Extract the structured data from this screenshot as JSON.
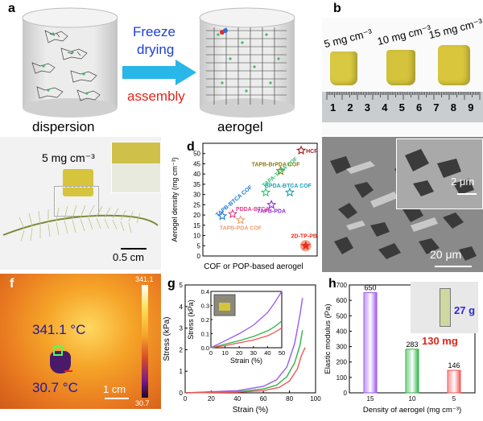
{
  "panels": {
    "a": {
      "label": "a",
      "left_caption": "dispersion",
      "right_caption": "aerogel",
      "arrow_top": "Freeze",
      "arrow_mid": "drying",
      "arrow_bottom": "assembly"
    },
    "b": {
      "label": "b",
      "densities": [
        "5 mg cm⁻³",
        "10 mg cm⁻³",
        "15 mg cm⁻³"
      ],
      "ruler_numbers": [
        "1",
        "2",
        "3",
        "4",
        "5",
        "6",
        "7",
        "8",
        "9"
      ]
    },
    "c": {
      "label": "c",
      "density": "5 mg cm⁻³",
      "scale": "0.5 cm"
    },
    "d": {
      "label": "d",
      "ylabel": "Aerogel density (mg cm⁻³)",
      "xlabel": "COF or POP-based aerogel"
    },
    "e": {
      "label": "e",
      "scale_inset": "2 μm",
      "scale_main": "20 μm"
    },
    "f": {
      "label": "f",
      "colorbar_max": "341.1",
      "colorbar_min": "30.7",
      "temp_high": "341.1 °C",
      "temp_low": "30.7 °C",
      "scale": "1 cm"
    },
    "g": {
      "label": "g",
      "inset_ylabel": "Stress (kPa)",
      "inset_xlabel": "Strain (%)"
    },
    "h": {
      "label": "h",
      "weight_top": "27 g",
      "weight_bottom": "130 mg"
    }
  },
  "colors": {
    "arrow": "#29b6e8",
    "freeze_text": "#1c3fd6",
    "assembly_text": "#e0261b",
    "aerogel_yellow": "#d6c43c",
    "ruler": "#c9cdd0",
    "thermal_bg": "#f08c1e",
    "hcp": "#9b1b1b",
    "bar15": "#9b59f0",
    "bar10": "#2fb44a",
    "bar5": "#f25555"
  },
  "chart_data": [
    {
      "type": "scatter",
      "title": "",
      "xlabel": "COF or POP-based aerogel",
      "ylabel": "Aerogel density (mg cm⁻³)",
      "ylim": [
        0,
        55
      ],
      "yticks": [
        0,
        5,
        10,
        15,
        20,
        25,
        30,
        35,
        40,
        45,
        50
      ],
      "points": [
        {
          "name": "HCP",
          "x": 8.6,
          "y": 51.5,
          "color": "#9b1b1b"
        },
        {
          "name": "TAPB-BrPDA COF",
          "x": 6.8,
          "y": 41.5,
          "color": "#8a7a12"
        },
        {
          "name": "BPDA-BTCA COF",
          "x": 7.6,
          "y": 31.0,
          "color": "#1f9fb5"
        },
        {
          "name": "TAPA-TFPA COF",
          "x": 5.5,
          "y": 31.0,
          "color": "#31c27a"
        },
        {
          "name": "TAPB-PDA",
          "x": 6.0,
          "y": 25.0,
          "color": "#8f2bd6"
        },
        {
          "name": "PDDA-BTCA",
          "x": 2.6,
          "y": 20.5,
          "color": "#e23a8b"
        },
        {
          "name": "TAPB-BTCA COF",
          "x": 1.7,
          "y": 19.5,
          "color": "#1e78d6"
        },
        {
          "name": "TAPB-PDA COF",
          "x": 3.3,
          "y": 17.5,
          "color": "#f0a070"
        },
        {
          "name": "2D-TP-PB",
          "x": 9.0,
          "y": 5.0,
          "color": "#e8301d"
        }
      ]
    },
    {
      "type": "line",
      "title": "",
      "xlabel": "Strain (%)",
      "ylabel": "Stress (kPa)",
      "xlim": [
        0,
        100
      ],
      "ylim": [
        0,
        5
      ],
      "xticks": [
        0,
        20,
        40,
        60,
        80,
        100
      ],
      "yticks": [
        0,
        1,
        2,
        3,
        4,
        5
      ],
      "series": [
        {
          "color": "#9b59f0",
          "x": [
            0,
            40,
            60,
            70,
            78,
            84,
            88,
            90
          ],
          "y": [
            0,
            0.1,
            0.3,
            0.6,
            1.2,
            2.3,
            3.6,
            4.4
          ]
        },
        {
          "color": "#2fb44a",
          "x": [
            0,
            40,
            60,
            70,
            78,
            84,
            88,
            90
          ],
          "y": [
            0,
            0.05,
            0.18,
            0.35,
            0.75,
            1.4,
            2.2,
            2.9
          ]
        },
        {
          "color": "#f25555",
          "x": [
            0,
            40,
            60,
            72,
            80,
            86,
            89,
            92
          ],
          "y": [
            0,
            0.03,
            0.1,
            0.25,
            0.55,
            1.1,
            1.7,
            2.1
          ]
        }
      ],
      "inset": {
        "xlabel": "Strain (%)",
        "ylabel": "Stress (kPa)",
        "xlim": [
          0,
          50
        ],
        "ylim": [
          0,
          0.4
        ],
        "xticks": [
          0,
          10,
          20,
          30,
          40,
          50
        ],
        "yticks": [
          0.0,
          0.1,
          0.2,
          0.3,
          0.4
        ],
        "series": [
          {
            "color": "#9b59f0",
            "x": [
              0,
              10,
              20,
              30,
              40,
              45,
              50
            ],
            "y": [
              0,
              0.05,
              0.1,
              0.16,
              0.25,
              0.32,
              0.42
            ]
          },
          {
            "color": "#2fb44a",
            "x": [
              0,
              10,
              20,
              30,
              40,
              45,
              50
            ],
            "y": [
              0,
              0.025,
              0.05,
              0.08,
              0.12,
              0.15,
              0.19
            ]
          },
          {
            "color": "#f25555",
            "x": [
              0,
              10,
              20,
              30,
              40,
              45,
              50
            ],
            "y": [
              0,
              0.015,
              0.035,
              0.055,
              0.085,
              0.11,
              0.14
            ]
          }
        ]
      }
    },
    {
      "type": "bar",
      "title": "",
      "xlabel": "Density of aerogel (mg cm⁻³)",
      "ylabel": "Elastic modulus (Pa)",
      "categories": [
        "15",
        "10",
        "5"
      ],
      "values": [
        650,
        283,
        146
      ],
      "colors": [
        "#9b59f0",
        "#2fb44a",
        "#f25555"
      ],
      "ylim": [
        0,
        700
      ],
      "yticks": [
        0,
        100,
        200,
        300,
        400,
        500,
        600,
        700
      ]
    }
  ]
}
